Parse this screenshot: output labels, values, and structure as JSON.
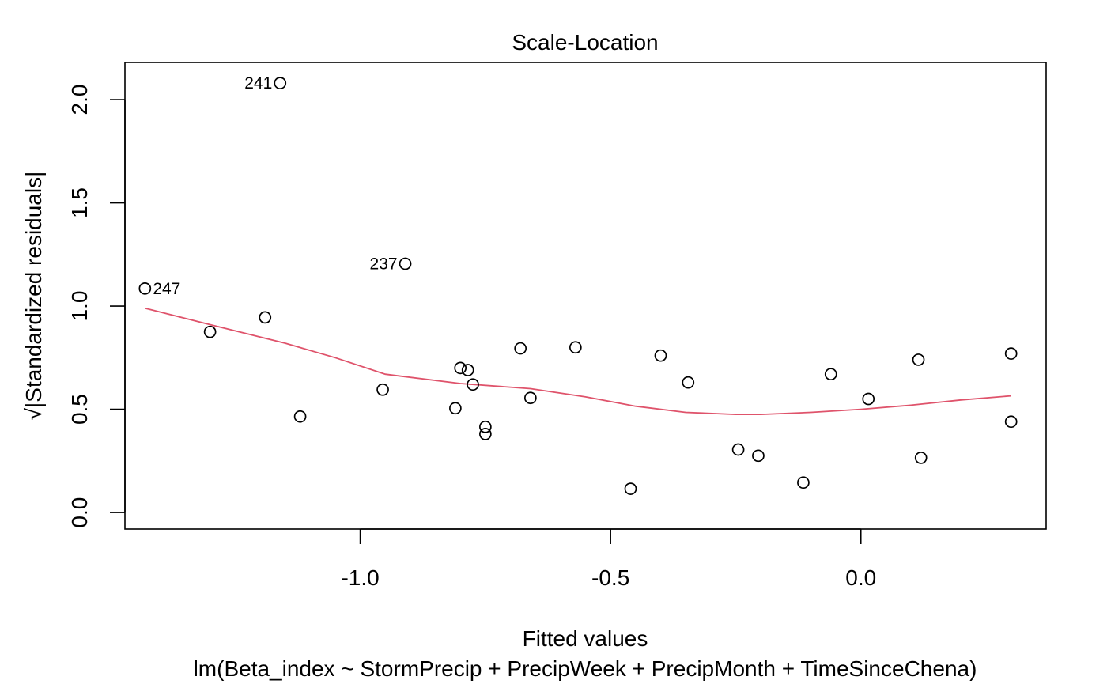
{
  "chart_data": {
    "type": "scatter",
    "title": "Scale-Location",
    "xlabel": "Fitted values",
    "sublabel": "lm(Beta_index ~ StormPrecip + PrecipWeek + PrecipMonth + TimeSinceChena)",
    "ylabel": "√|Standardized residuals|",
    "xlim": [
      -1.47,
      0.37
    ],
    "ylim": [
      -0.08,
      2.18
    ],
    "x_ticks": [
      {
        "value": -1.0,
        "label": "-1.0"
      },
      {
        "value": -0.5,
        "label": "-0.5"
      },
      {
        "value": 0.0,
        "label": "0.0"
      }
    ],
    "y_ticks": [
      {
        "value": 0.0,
        "label": "0.0"
      },
      {
        "value": 0.5,
        "label": "0.5"
      },
      {
        "value": 1.0,
        "label": "1.0"
      },
      {
        "value": 1.5,
        "label": "1.5"
      },
      {
        "value": 2.0,
        "label": "2.0"
      }
    ],
    "points": [
      {
        "x": -1.43,
        "y": 1.085,
        "label": "247",
        "label_side": "right"
      },
      {
        "x": -1.16,
        "y": 2.08,
        "label": "241",
        "label_side": "left"
      },
      {
        "x": -0.91,
        "y": 1.205,
        "label": "237",
        "label_side": "left"
      },
      {
        "x": -1.3,
        "y": 0.875
      },
      {
        "x": -1.19,
        "y": 0.945
      },
      {
        "x": -1.12,
        "y": 0.465
      },
      {
        "x": -0.955,
        "y": 0.595
      },
      {
        "x": -0.81,
        "y": 0.505
      },
      {
        "x": -0.8,
        "y": 0.7
      },
      {
        "x": -0.785,
        "y": 0.69
      },
      {
        "x": -0.775,
        "y": 0.62
      },
      {
        "x": -0.75,
        "y": 0.415
      },
      {
        "x": -0.75,
        "y": 0.38
      },
      {
        "x": -0.68,
        "y": 0.795
      },
      {
        "x": -0.66,
        "y": 0.555
      },
      {
        "x": -0.57,
        "y": 0.8
      },
      {
        "x": -0.46,
        "y": 0.115
      },
      {
        "x": -0.4,
        "y": 0.76
      },
      {
        "x": -0.345,
        "y": 0.63
      },
      {
        "x": -0.245,
        "y": 0.305
      },
      {
        "x": -0.205,
        "y": 0.275
      },
      {
        "x": -0.115,
        "y": 0.145
      },
      {
        "x": -0.06,
        "y": 0.67
      },
      {
        "x": 0.015,
        "y": 0.55
      },
      {
        "x": 0.115,
        "y": 0.74
      },
      {
        "x": 0.12,
        "y": 0.265
      },
      {
        "x": 0.3,
        "y": 0.44
      },
      {
        "x": 0.3,
        "y": 0.77
      }
    ],
    "smooth_line": {
      "color": "#DF536B",
      "points": [
        {
          "x": -1.43,
          "y": 0.99
        },
        {
          "x": -1.3,
          "y": 0.91
        },
        {
          "x": -1.15,
          "y": 0.82
        },
        {
          "x": -1.05,
          "y": 0.75
        },
        {
          "x": -0.95,
          "y": 0.67
        },
        {
          "x": -0.8,
          "y": 0.625
        },
        {
          "x": -0.66,
          "y": 0.6
        },
        {
          "x": -0.55,
          "y": 0.56
        },
        {
          "x": -0.45,
          "y": 0.515
        },
        {
          "x": -0.35,
          "y": 0.485
        },
        {
          "x": -0.25,
          "y": 0.475
        },
        {
          "x": -0.2,
          "y": 0.475
        },
        {
          "x": -0.1,
          "y": 0.485
        },
        {
          "x": 0.0,
          "y": 0.5
        },
        {
          "x": 0.1,
          "y": 0.52
        },
        {
          "x": 0.2,
          "y": 0.545
        },
        {
          "x": 0.3,
          "y": 0.565
        }
      ]
    },
    "point_color": "#000000",
    "grid": false
  }
}
